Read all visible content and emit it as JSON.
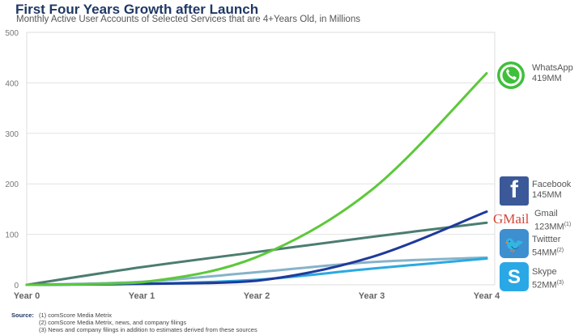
{
  "title": "First Four Years Growth after Launch",
  "subtitle": "Monthly Active User Accounts of Selected Services that are 4+Years Old, in Millions",
  "chart_data": {
    "type": "line",
    "title": "First Four Years Growth after Launch",
    "subtitle": "Monthly Active User Accounts of Selected Services that are 4+Years Old, in Millions",
    "categories": [
      "Year 0",
      "Year 1",
      "Year 2",
      "Year 3",
      "Year 4"
    ],
    "ylim": [
      0,
      500
    ],
    "yticks": [
      "0",
      "100",
      "200",
      "300",
      "400",
      "500"
    ],
    "grid": true,
    "legend": "right (icons with end labels)",
    "series": [
      {
        "name": "WhatsApp",
        "end_label": "419MM",
        "note": "",
        "color": "#5dc83b",
        "icon": "whatsapp-logo",
        "values": [
          0,
          5,
          55,
          188,
          419
        ]
      },
      {
        "name": "Facebook",
        "end_label": "145MM",
        "note": "",
        "color": "#1f3a9a",
        "icon": "facebook-logo",
        "values": [
          0,
          2,
          8,
          55,
          145
        ]
      },
      {
        "name": "Gmail",
        "end_label": "123MM",
        "note": "(1)",
        "color": "#4b7d70",
        "icon": "gmail-logo",
        "values": [
          0,
          35,
          65,
          95,
          123
        ]
      },
      {
        "name": "Twittter",
        "end_label": "54MM",
        "note": "(2)",
        "color": "#86b3c9",
        "icon": "twitter-logo",
        "values": [
          0,
          6,
          25,
          45,
          54
        ]
      },
      {
        "name": "Skype",
        "end_label": "52MM",
        "note": "(3)",
        "color": "#2ba9e1",
        "icon": "skype-logo",
        "values": [
          0,
          2,
          10,
          32,
          52
        ]
      }
    ]
  },
  "source": {
    "label": "Source:",
    "lines": [
      "(1) comScore Media Metrix",
      "(2) comScore Media Metrix, news, and company filings",
      "(3) News and company filings in addition to estimates derived from these sources"
    ]
  }
}
